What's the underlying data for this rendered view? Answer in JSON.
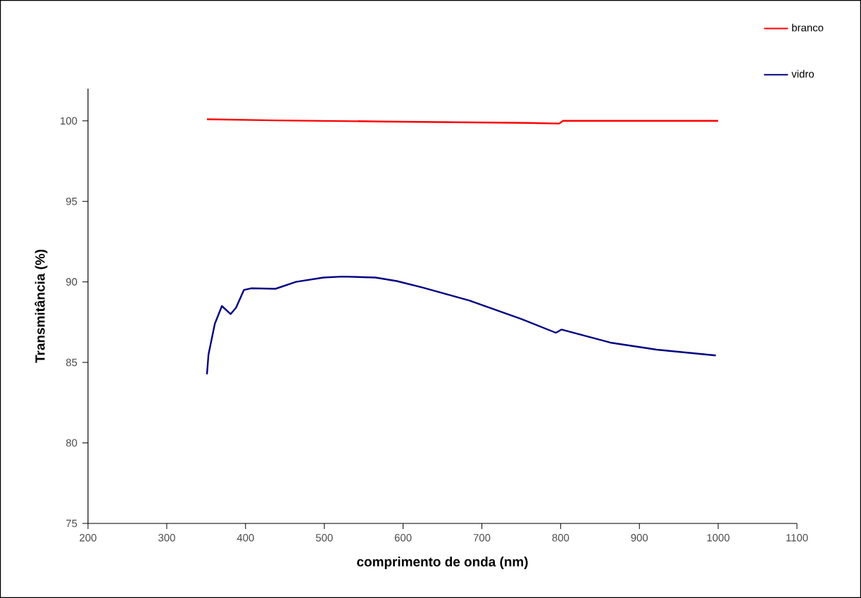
{
  "chart_data": {
    "type": "line",
    "xlabel": "comprimento de onda (nm)",
    "ylabel": "Transmitância (%)",
    "xlim": [
      200,
      1100
    ],
    "xticks": [
      200,
      300,
      400,
      500,
      600,
      700,
      800,
      900,
      1000,
      1100
    ],
    "ylim": [
      75,
      102
    ],
    "yticks": [
      75,
      80,
      85,
      90,
      95,
      100
    ],
    "grid": false,
    "legend": "top right",
    "marker": "none",
    "line_style": "solid",
    "series": [
      {
        "name": "branco",
        "color": "#ff0000",
        "x": [
          351,
          438,
          573,
          759,
          798,
          803,
          1000
        ],
        "values": [
          100.1,
          100.03,
          99.96,
          99.87,
          99.83,
          100.0,
          100.0
        ]
      },
      {
        "name": "vidro",
        "color": "#000080",
        "x": [
          351,
          353,
          361,
          370,
          381,
          388,
          398,
          407,
          438,
          464,
          499,
          523,
          565,
          592,
          624.5,
          684,
          750,
          794,
          801,
          863,
          922,
          997
        ],
        "values": [
          84.26,
          85.5,
          87.4,
          88.5,
          88.0,
          88.4,
          89.5,
          89.6,
          89.57,
          90.0,
          90.27,
          90.33,
          90.27,
          90.05,
          89.65,
          88.84,
          87.7,
          86.84,
          87.04,
          86.23,
          85.79,
          85.43
        ]
      }
    ]
  }
}
